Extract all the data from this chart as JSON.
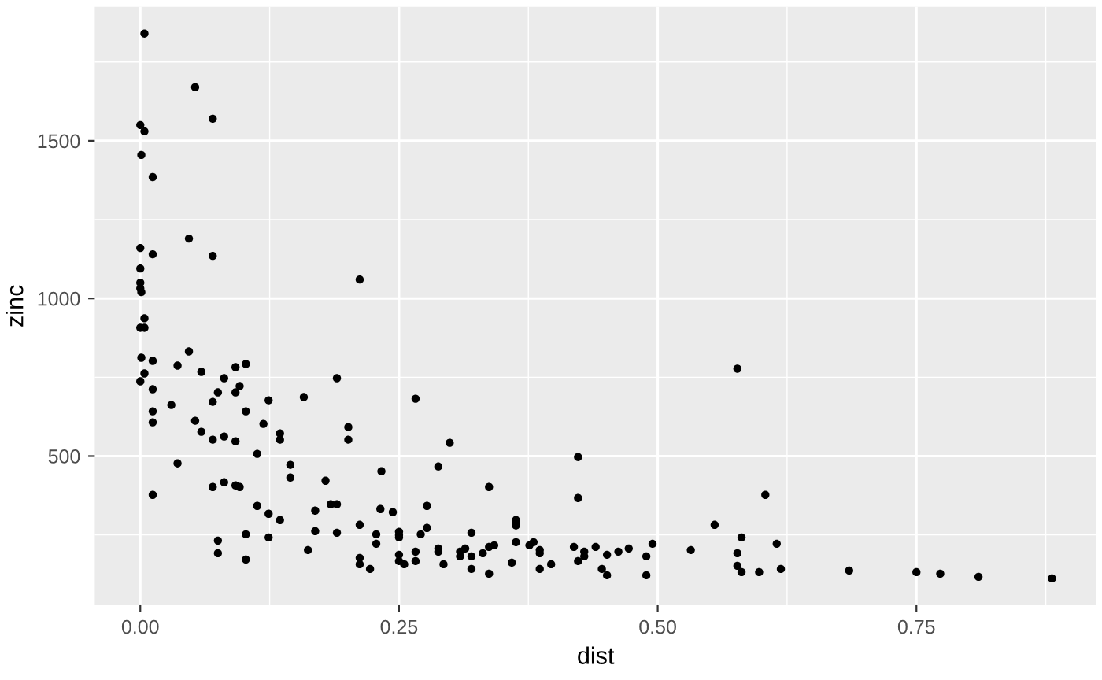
{
  "chart_data": {
    "type": "scatter",
    "xlabel": "dist",
    "ylabel": "zinc",
    "xlim": [
      -0.044,
      0.924
    ],
    "ylim": [
      27,
      1925
    ],
    "xticks": [
      {
        "value": 0,
        "label": "0.00"
      },
      {
        "value": 0.25,
        "label": "0.25"
      },
      {
        "value": 0.5,
        "label": "0.50"
      },
      {
        "value": 0.75,
        "label": "0.75"
      }
    ],
    "yticks": [
      500,
      1000,
      1500
    ],
    "grid": true,
    "marker": "circle",
    "series": [
      {
        "color": "#000000",
        "x": [
          0.004,
          0.053,
          0.07,
          0.0,
          0.004,
          0.001,
          0.012,
          0.047,
          0.0,
          0.012,
          0.07,
          0.0,
          0.0,
          0.0,
          0.001,
          0.212,
          0.004,
          0.0,
          0.004,
          0.047,
          0.001,
          0.012,
          0.036,
          0.102,
          0.092,
          0.059,
          0.004,
          0.081,
          0.19,
          0.0,
          0.096,
          0.092,
          0.075,
          0.012,
          0.158,
          0.124,
          0.07,
          0.03,
          0.102,
          0.012,
          0.012,
          0.053,
          0.119,
          0.201,
          0.059,
          0.135,
          0.081,
          0.07,
          0.092,
          0.135,
          0.201,
          0.113,
          0.036,
          0.145,
          0.145,
          0.179,
          0.233,
          0.081,
          0.07,
          0.092,
          0.096,
          0.012,
          0.113,
          0.184,
          0.19,
          0.124,
          0.169,
          0.135,
          0.232,
          0.244,
          0.212,
          0.169,
          0.19,
          0.102,
          0.228,
          0.25,
          0.25,
          0.25,
          0.075,
          0.124,
          0.228,
          0.162,
          0.075,
          0.212,
          0.212,
          0.25,
          0.102,
          0.222,
          0.25,
          0.255,
          0.266,
          0.299,
          0.288,
          0.337,
          0.423,
          0.423,
          0.277,
          0.277,
          0.271,
          0.32,
          0.363,
          0.363,
          0.363,
          0.266,
          0.288,
          0.288,
          0.309,
          0.314,
          0.32,
          0.309,
          0.331,
          0.337,
          0.342,
          0.363,
          0.376,
          0.38,
          0.386,
          0.386,
          0.397,
          0.386,
          0.359,
          0.337,
          0.32,
          0.293,
          0.266,
          0.419,
          0.423,
          0.429,
          0.429,
          0.44,
          0.451,
          0.462,
          0.472,
          0.495,
          0.489,
          0.489,
          0.451,
          0.446,
          0.532,
          0.555,
          0.577,
          0.581,
          0.577,
          0.577,
          0.581,
          0.598,
          0.604,
          0.615,
          0.619,
          0.685,
          0.75,
          0.773,
          0.81,
          0.881
        ],
        "values": [
          1840,
          1670,
          1570,
          1550,
          1530,
          1455,
          1385,
          1190,
          1160,
          1140,
          1135,
          1095,
          1050,
          1032,
          1020,
          1060,
          937,
          907,
          907,
          832,
          812,
          802,
          787,
          792,
          782,
          767,
          762,
          747,
          747,
          737,
          722,
          702,
          702,
          712,
          687,
          677,
          672,
          662,
          642,
          642,
          607,
          612,
          602,
          592,
          577,
          572,
          562,
          552,
          547,
          552,
          552,
          507,
          477,
          472,
          432,
          422,
          452,
          417,
          402,
          407,
          402,
          377,
          342,
          347,
          347,
          317,
          327,
          297,
          332,
          322,
          282,
          262,
          257,
          252,
          252,
          260,
          250,
          242,
          232,
          242,
          222,
          202,
          192,
          177,
          157,
          187,
          172,
          142,
          167,
          157,
          682,
          542,
          467,
          402,
          497,
          367,
          342,
          272,
          252,
          257,
          297,
          288,
          280,
          197,
          207,
          197,
          197,
          207,
          182,
          182,
          192,
          212,
          217,
          227,
          217,
          227,
          202,
          192,
          157,
          142,
          162,
          127,
          142,
          157,
          167,
          212,
          167,
          197,
          182,
          212,
          187,
          197,
          207,
          222,
          182,
          122,
          122,
          142,
          202,
          282,
          777,
          242,
          192,
          152,
          132,
          132,
          377,
          222,
          142,
          137,
          132,
          127,
          117,
          112
        ]
      }
    ]
  }
}
